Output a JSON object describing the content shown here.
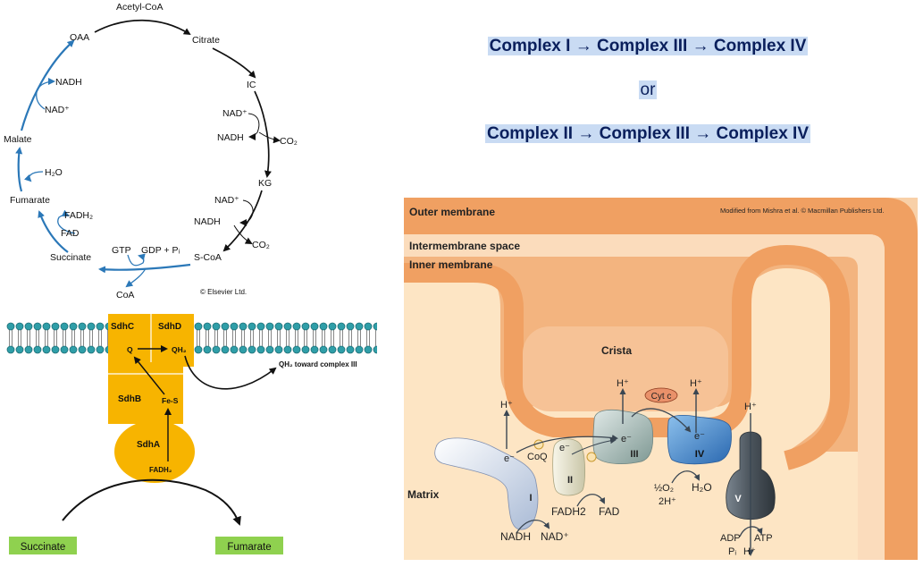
{
  "krebs": {
    "acetyl_coa": "Acetyl-CoA",
    "oaa": "OAA",
    "citrate": "Citrate",
    "ic": "IC",
    "nad_ic": "NAD⁺",
    "nadh_ic": "NADH",
    "co2_ic": "CO₂",
    "kg": "KG",
    "nad_kg": "NAD⁺",
    "nadh_kg": "NADH",
    "co2_kg": "CO₂",
    "s_coa": "S-CoA",
    "gtp": "GTP",
    "gdp_pi": "GDP + Pᵢ",
    "coa": "CoA",
    "succinate": "Succinate",
    "fadh2": "FADH₂",
    "fad": "FAD",
    "fumarate": "Fumarate",
    "h2o": "H₂O",
    "malate": "Malate",
    "nad_mal": "NAD⁺",
    "nadh_mal": "NADH",
    "copyright": "© Elsevier Ltd."
  },
  "sdh": {
    "sdhc": "SdhC",
    "sdhd": "SdhD",
    "q": "Q",
    "qh2": "QH₂",
    "sdhb": "SdhB",
    "fes": "Fe-S",
    "sdha": "SdhA",
    "fadh2": "FADH₂",
    "qh2_toward": "QH₂ toward complex III",
    "succinate": "Succinate",
    "fumarate": "Fumarate"
  },
  "sequence": {
    "line1": "Complex I → Complex III → Complex IV",
    "or": "or",
    "line2": "Complex II → Complex III → Complex IV"
  },
  "mito": {
    "outer_membrane": "Outer membrane",
    "intermembrane_space": "Intermembrane space",
    "inner_membrane": "Inner membrane",
    "crista": "Crista",
    "matrix": "Matrix",
    "credit": "Modified from Mishra et al. © Macmillan Publishers Ltd.",
    "h_plus": "H⁺",
    "e_minus": "e⁻",
    "coq": "CoQ",
    "cyt_c": "Cyt c",
    "complex_1": "I",
    "complex_2": "II",
    "complex_3": "III",
    "complex_4": "IV",
    "complex_5": "V",
    "nadh": "NADH",
    "nad_plus": "NAD⁺",
    "fadh2": "FADH2",
    "fad": "FAD",
    "half_o2": "½O₂",
    "two_h": "2H⁺",
    "h2o": "H₂O",
    "adp": "ADP",
    "pi": "Pᵢ",
    "atp": "ATP"
  },
  "colors": {
    "krebs_arrow_blue": "#2b78b8",
    "sdh_yellow": "#f7b400",
    "membrane_teal": "#2f9ea8",
    "label_green": "#8fd14f",
    "mito_dark": "#f0a062",
    "mito_light": "#fbd9b4",
    "complex_blue": "#3d87cc",
    "complex_grey": "#9fb4b0",
    "complex_dark": "#4d565e"
  }
}
